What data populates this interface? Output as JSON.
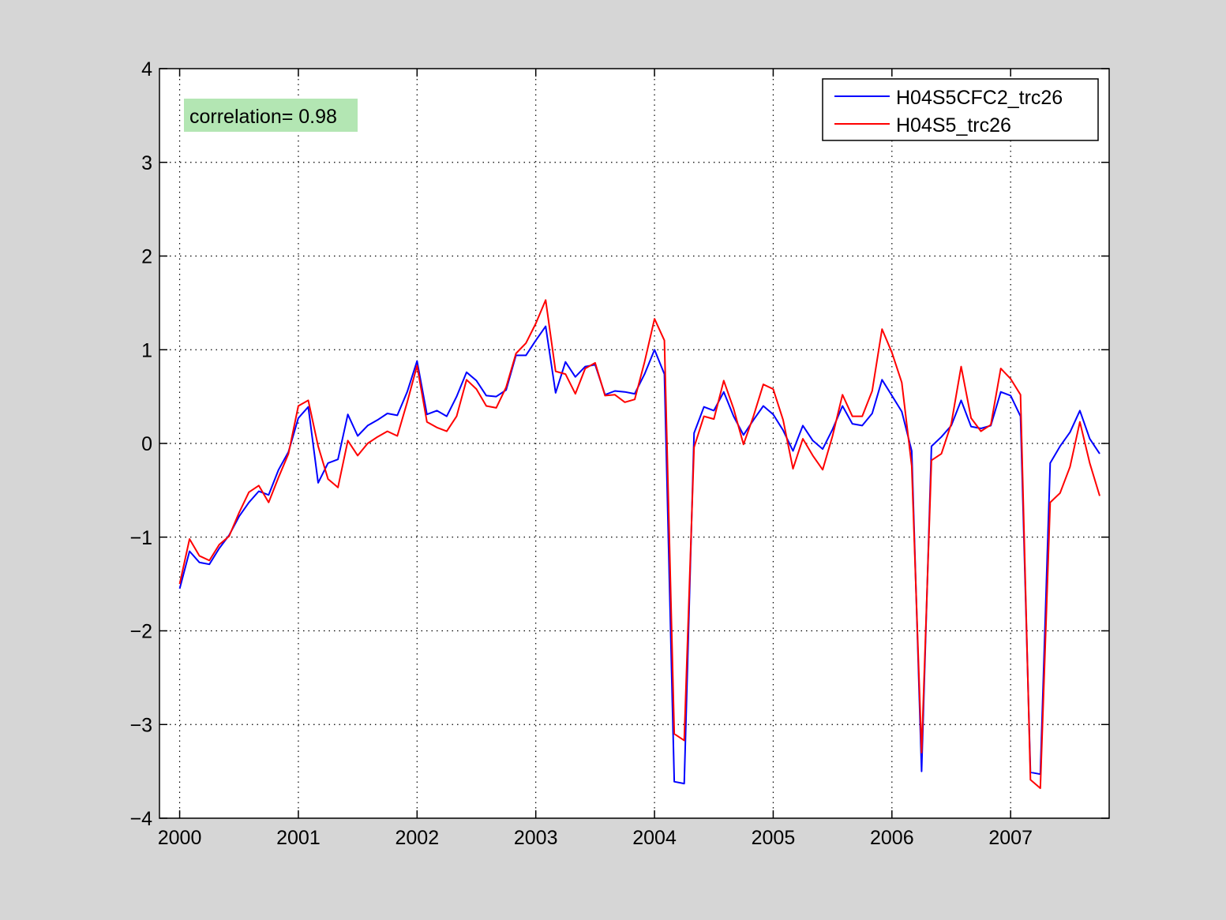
{
  "chart_data": {
    "type": "line",
    "title": "",
    "xlabel": "",
    "ylabel": "",
    "xlim": [
      1999.83,
      2007.83
    ],
    "ylim": [
      -4,
      4
    ],
    "grid": true,
    "legend_placement": "top-right",
    "x_ticks": [
      "2000",
      "2001",
      "2002",
      "2003",
      "2004",
      "2005",
      "2006",
      "2007"
    ],
    "y_ticks": [
      "4",
      "3",
      "2",
      "1",
      "0",
      "−1",
      "−2",
      "−3",
      "−4"
    ],
    "annotation": "correlation= 0.98",
    "annotation_color": "#b3e6b3",
    "x": [
      "2000-01",
      "2000-02",
      "2000-03",
      "2000-04",
      "2000-05",
      "2000-06",
      "2000-07",
      "2000-08",
      "2000-09",
      "2000-10",
      "2000-11",
      "2000-12",
      "2001-01",
      "2001-02",
      "2001-03",
      "2001-04",
      "2001-05",
      "2001-06",
      "2001-07",
      "2001-08",
      "2001-09",
      "2001-10",
      "2001-11",
      "2001-12",
      "2002-01",
      "2002-02",
      "2002-03",
      "2002-04",
      "2002-05",
      "2002-06",
      "2002-07",
      "2002-08",
      "2002-09",
      "2002-10",
      "2002-11",
      "2002-12",
      "2003-01",
      "2003-02",
      "2003-03",
      "2003-04",
      "2003-05",
      "2003-06",
      "2003-07",
      "2003-08",
      "2003-09",
      "2003-10",
      "2003-11",
      "2003-12",
      "2004-01",
      "2004-02",
      "2004-03",
      "2004-04",
      "2004-05",
      "2004-06",
      "2004-07",
      "2004-08",
      "2004-09",
      "2004-10",
      "2004-11",
      "2004-12",
      "2005-01",
      "2005-02",
      "2005-03",
      "2005-04",
      "2005-05",
      "2005-06",
      "2005-07",
      "2005-08",
      "2005-09",
      "2005-10",
      "2005-11",
      "2005-12",
      "2006-01",
      "2006-02",
      "2006-03",
      "2006-04",
      "2006-05",
      "2006-06",
      "2006-07",
      "2006-08",
      "2006-09",
      "2006-10",
      "2006-11",
      "2006-12",
      "2007-01",
      "2007-02",
      "2007-03",
      "2007-04",
      "2007-05",
      "2007-06",
      "2007-07",
      "2007-08",
      "2007-09",
      "2007-10"
    ],
    "series": [
      {
        "name": "H04S5CFC2_trc26",
        "color": "#0000ff",
        "values": [
          -1.55,
          -1.15,
          -1.27,
          -1.29,
          -1.12,
          -0.98,
          -0.78,
          -0.63,
          -0.51,
          -0.55,
          -0.28,
          -0.09,
          0.27,
          0.39,
          -0.42,
          -0.21,
          -0.17,
          0.31,
          0.08,
          0.19,
          0.25,
          0.32,
          0.3,
          0.55,
          0.88,
          0.31,
          0.35,
          0.29,
          0.5,
          0.76,
          0.67,
          0.51,
          0.5,
          0.57,
          0.94,
          0.94,
          1.1,
          1.25,
          0.54,
          0.87,
          0.71,
          0.82,
          0.84,
          0.52,
          0.56,
          0.55,
          0.53,
          0.74,
          1.0,
          0.74,
          -3.61,
          -3.63,
          0.11,
          0.39,
          0.35,
          0.55,
          0.29,
          0.09,
          0.25,
          0.4,
          0.31,
          0.14,
          -0.08,
          0.19,
          0.03,
          -0.06,
          0.15,
          0.4,
          0.21,
          0.19,
          0.32,
          0.68,
          0.51,
          0.34,
          -0.08,
          -3.5,
          -0.03,
          0.07,
          0.19,
          0.46,
          0.18,
          0.16,
          0.19,
          0.55,
          0.51,
          0.29,
          -3.51,
          -3.53,
          -0.21,
          -0.03,
          0.12,
          0.35,
          0.05,
          -0.11
        ]
      },
      {
        "name": "H04S5_trc26",
        "color": "#ff0000",
        "values": [
          -1.5,
          -1.02,
          -1.2,
          -1.25,
          -1.08,
          -0.99,
          -0.74,
          -0.52,
          -0.45,
          -0.63,
          -0.36,
          -0.11,
          0.4,
          0.46,
          -0.03,
          -0.38,
          -0.47,
          0.03,
          -0.13,
          0.0,
          0.07,
          0.13,
          0.08,
          0.44,
          0.83,
          0.23,
          0.17,
          0.13,
          0.29,
          0.68,
          0.58,
          0.4,
          0.38,
          0.6,
          0.96,
          1.07,
          1.28,
          1.53,
          0.77,
          0.74,
          0.53,
          0.8,
          0.86,
          0.51,
          0.52,
          0.44,
          0.47,
          0.87,
          1.33,
          1.1,
          -3.1,
          -3.17,
          -0.04,
          0.29,
          0.26,
          0.67,
          0.37,
          -0.01,
          0.29,
          0.63,
          0.58,
          0.25,
          -0.27,
          0.05,
          -0.13,
          -0.28,
          0.08,
          0.52,
          0.29,
          0.29,
          0.56,
          1.22,
          0.97,
          0.65,
          -0.24,
          -3.3,
          -0.18,
          -0.11,
          0.21,
          0.82,
          0.27,
          0.13,
          0.2,
          0.8,
          0.69,
          0.52,
          -3.59,
          -3.68,
          -0.63,
          -0.53,
          -0.25,
          0.23,
          -0.21,
          -0.56
        ]
      }
    ]
  }
}
